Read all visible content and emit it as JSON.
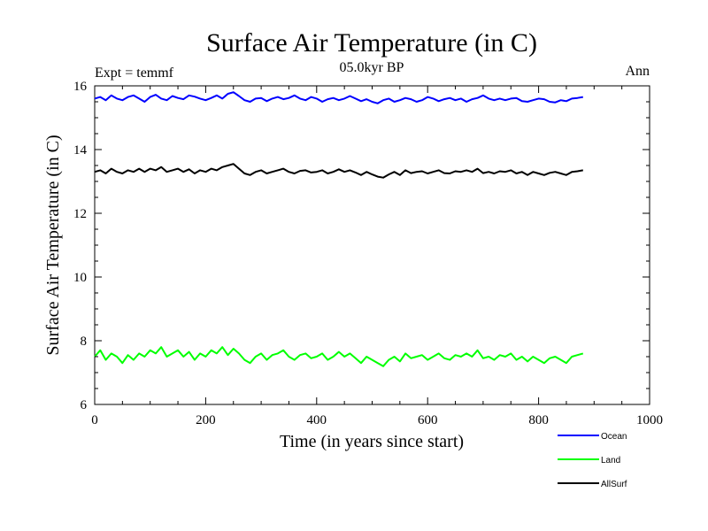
{
  "chart_data": {
    "type": "line",
    "title": "Surface Air Temperature (in C)",
    "subtitle": "05.0kyr BP",
    "left_label": "Expt = temmf",
    "right_label": "Ann",
    "xlabel": "Time (in years since start)",
    "ylabel": "Surface Air Temperature (in C)",
    "xlim": [
      0,
      1000
    ],
    "ylim": [
      6,
      16
    ],
    "x_ticks": [
      "0",
      "200",
      "400",
      "600",
      "800",
      "1000"
    ],
    "y_ticks": [
      "6",
      "8",
      "10",
      "12",
      "14",
      "16"
    ],
    "grid": false,
    "legend_position": "bottom-right",
    "series": [
      {
        "name": "Ocean",
        "color": "#0000ff",
        "x_start": 0,
        "x_step": 10,
        "values": [
          15.6,
          15.65,
          15.55,
          15.7,
          15.6,
          15.55,
          15.65,
          15.7,
          15.6,
          15.5,
          15.65,
          15.72,
          15.6,
          15.55,
          15.68,
          15.62,
          15.58,
          15.7,
          15.66,
          15.6,
          15.55,
          15.62,
          15.7,
          15.6,
          15.75,
          15.8,
          15.68,
          15.55,
          15.5,
          15.6,
          15.62,
          15.52,
          15.6,
          15.65,
          15.58,
          15.62,
          15.7,
          15.6,
          15.55,
          15.65,
          15.6,
          15.5,
          15.58,
          15.62,
          15.55,
          15.6,
          15.68,
          15.6,
          15.52,
          15.58,
          15.5,
          15.45,
          15.55,
          15.6,
          15.5,
          15.55,
          15.62,
          15.58,
          15.5,
          15.55,
          15.65,
          15.6,
          15.52,
          15.58,
          15.62,
          15.55,
          15.6,
          15.5,
          15.58,
          15.62,
          15.7,
          15.6,
          15.55,
          15.6,
          15.55,
          15.6,
          15.62,
          15.52,
          15.5,
          15.55,
          15.6,
          15.58,
          15.5,
          15.48,
          15.55,
          15.52,
          15.6,
          15.62,
          15.65
        ]
      },
      {
        "name": "Land",
        "color": "#00ff00",
        "x_start": 0,
        "x_step": 10,
        "values": [
          7.5,
          7.7,
          7.4,
          7.6,
          7.5,
          7.3,
          7.55,
          7.4,
          7.6,
          7.5,
          7.7,
          7.6,
          7.8,
          7.5,
          7.6,
          7.7,
          7.5,
          7.65,
          7.4,
          7.6,
          7.5,
          7.7,
          7.6,
          7.8,
          7.55,
          7.75,
          7.6,
          7.4,
          7.3,
          7.5,
          7.6,
          7.4,
          7.55,
          7.6,
          7.7,
          7.5,
          7.4,
          7.55,
          7.6,
          7.45,
          7.5,
          7.6,
          7.4,
          7.5,
          7.65,
          7.5,
          7.6,
          7.45,
          7.3,
          7.5,
          7.4,
          7.3,
          7.2,
          7.4,
          7.5,
          7.35,
          7.6,
          7.45,
          7.5,
          7.55,
          7.4,
          7.5,
          7.6,
          7.45,
          7.4,
          7.55,
          7.5,
          7.6,
          7.5,
          7.7,
          7.45,
          7.5,
          7.4,
          7.55,
          7.5,
          7.6,
          7.4,
          7.5,
          7.35,
          7.5,
          7.4,
          7.3,
          7.45,
          7.5,
          7.4,
          7.3,
          7.5,
          7.55,
          7.6
        ]
      },
      {
        "name": "AllSurf",
        "color": "#000000",
        "x_start": 0,
        "x_step": 10,
        "values": [
          13.3,
          13.35,
          13.25,
          13.4,
          13.3,
          13.25,
          13.35,
          13.3,
          13.4,
          13.3,
          13.4,
          13.35,
          13.45,
          13.3,
          13.35,
          13.4,
          13.3,
          13.38,
          13.25,
          13.35,
          13.3,
          13.4,
          13.35,
          13.45,
          13.5,
          13.55,
          13.4,
          13.25,
          13.2,
          13.3,
          13.35,
          13.25,
          13.3,
          13.35,
          13.4,
          13.3,
          13.25,
          13.33,
          13.35,
          13.28,
          13.3,
          13.35,
          13.25,
          13.3,
          13.38,
          13.3,
          13.35,
          13.28,
          13.2,
          13.3,
          13.22,
          13.15,
          13.12,
          13.22,
          13.3,
          13.2,
          13.35,
          13.26,
          13.3,
          13.32,
          13.25,
          13.3,
          13.35,
          13.26,
          13.25,
          13.32,
          13.3,
          13.35,
          13.3,
          13.4,
          13.26,
          13.3,
          13.25,
          13.32,
          13.3,
          13.35,
          13.25,
          13.3,
          13.2,
          13.3,
          13.25,
          13.2,
          13.27,
          13.3,
          13.25,
          13.2,
          13.3,
          13.32,
          13.35
        ]
      }
    ]
  }
}
